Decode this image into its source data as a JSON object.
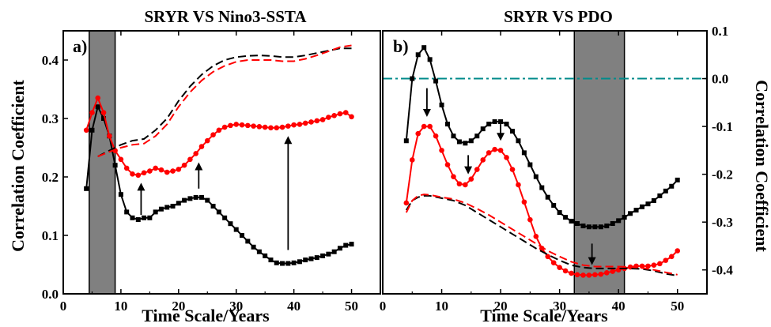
{
  "colors": {
    "black": "#000000",
    "red": "#ff0000",
    "shade": "#808080",
    "zero_line": "#008b8b"
  },
  "chart_data": [
    {
      "type": "line",
      "panel_label": "a)",
      "title": "SRYR VS Nino3-SSTA",
      "xlabel": "Time Scale/Years",
      "ylabel": "Correlation Coefficient",
      "xlim": [
        0,
        55
      ],
      "ylim": [
        0,
        0.45
      ],
      "x_ticks": [
        "0",
        "10",
        "20",
        "30",
        "40",
        "50"
      ],
      "y_ticks": [
        "0.0",
        "0.1",
        "0.2",
        "0.3",
        "0.4"
      ],
      "y_axis_side": "left",
      "shaded_band": [
        4.5,
        9
      ],
      "series": [
        {
          "color": "black",
          "style": "line-square",
          "x": [
            4,
            5,
            6,
            7,
            8,
            9,
            10,
            11,
            12,
            13,
            14,
            15,
            16,
            17,
            18,
            19,
            20,
            21,
            22,
            23,
            24,
            25,
            26,
            27,
            28,
            29,
            30,
            31,
            32,
            33,
            34,
            35,
            36,
            37,
            38,
            39,
            40,
            41,
            42,
            43,
            44,
            45,
            46,
            47,
            48,
            49,
            50
          ],
          "y": [
            0.18,
            0.28,
            0.32,
            0.3,
            0.27,
            0.22,
            0.17,
            0.14,
            0.13,
            0.127,
            0.13,
            0.13,
            0.14,
            0.145,
            0.148,
            0.15,
            0.155,
            0.16,
            0.163,
            0.165,
            0.165,
            0.16,
            0.15,
            0.14,
            0.13,
            0.12,
            0.11,
            0.1,
            0.09,
            0.08,
            0.072,
            0.065,
            0.058,
            0.053,
            0.052,
            0.052,
            0.053,
            0.055,
            0.058,
            0.06,
            0.062,
            0.065,
            0.068,
            0.072,
            0.078,
            0.083,
            0.085
          ]
        },
        {
          "color": "red",
          "style": "line-circle",
          "x": [
            4,
            5,
            6,
            7,
            8,
            9,
            10,
            11,
            12,
            13,
            14,
            15,
            16,
            17,
            18,
            19,
            20,
            21,
            22,
            23,
            24,
            25,
            26,
            27,
            28,
            29,
            30,
            31,
            32,
            33,
            34,
            35,
            36,
            37,
            38,
            39,
            40,
            41,
            42,
            43,
            44,
            45,
            46,
            47,
            48,
            49,
            50
          ],
          "y": [
            0.28,
            0.31,
            0.335,
            0.31,
            0.27,
            0.245,
            0.23,
            0.215,
            0.205,
            0.203,
            0.207,
            0.21,
            0.215,
            0.212,
            0.208,
            0.21,
            0.213,
            0.22,
            0.23,
            0.24,
            0.252,
            0.262,
            0.272,
            0.28,
            0.285,
            0.288,
            0.29,
            0.289,
            0.288,
            0.287,
            0.286,
            0.285,
            0.284,
            0.284,
            0.285,
            0.287,
            0.289,
            0.29,
            0.292,
            0.294,
            0.296,
            0.298,
            0.302,
            0.305,
            0.308,
            0.31,
            0.303
          ]
        },
        {
          "color": "black",
          "style": "dashed",
          "x": [
            6,
            8,
            10,
            12,
            14,
            16,
            18,
            20,
            22,
            24,
            26,
            28,
            30,
            32,
            34,
            36,
            38,
            40,
            42,
            44,
            46,
            48,
            50
          ],
          "y": [
            0.235,
            0.245,
            0.255,
            0.262,
            0.265,
            0.28,
            0.3,
            0.33,
            0.355,
            0.375,
            0.39,
            0.4,
            0.405,
            0.407,
            0.408,
            0.407,
            0.405,
            0.405,
            0.408,
            0.412,
            0.416,
            0.42,
            0.42
          ]
        },
        {
          "color": "red",
          "style": "dashed",
          "x": [
            6,
            8,
            10,
            12,
            14,
            16,
            18,
            20,
            22,
            24,
            26,
            28,
            30,
            32,
            34,
            36,
            38,
            40,
            42,
            44,
            46,
            48,
            50
          ],
          "y": [
            0.235,
            0.243,
            0.25,
            0.255,
            0.257,
            0.27,
            0.29,
            0.32,
            0.345,
            0.365,
            0.38,
            0.39,
            0.397,
            0.4,
            0.4,
            0.4,
            0.398,
            0.398,
            0.402,
            0.408,
            0.415,
            0.422,
            0.425
          ]
        }
      ],
      "arrows": [
        {
          "x": 13.5,
          "y_from": 0.135,
          "y_to": 0.19
        },
        {
          "x": 23.5,
          "y_from": 0.18,
          "y_to": 0.225
        },
        {
          "x": 39,
          "y_from": 0.075,
          "y_to": 0.27
        }
      ]
    },
    {
      "type": "line",
      "panel_label": "b)",
      "title": "SRYR VS PDO",
      "xlabel": "Time Scale/Years",
      "ylabel": "Correlation Coefficient",
      "xlim": [
        0,
        55
      ],
      "ylim": [
        -0.45,
        0.1
      ],
      "x_ticks": [
        "0",
        "10",
        "20",
        "30",
        "40",
        "50"
      ],
      "y_ticks": [
        "0.1",
        "0.0",
        "-0.1",
        "-0.2",
        "-0.3",
        "-0.4"
      ],
      "y_axis_side": "right",
      "shaded_band": [
        32.5,
        41
      ],
      "zero_line": 0,
      "series": [
        {
          "color": "black",
          "style": "line-square",
          "x": [
            4,
            5,
            6,
            7,
            8,
            9,
            10,
            11,
            12,
            13,
            14,
            15,
            16,
            17,
            18,
            19,
            20,
            21,
            22,
            23,
            24,
            25,
            26,
            27,
            28,
            29,
            30,
            31,
            32,
            33,
            34,
            35,
            36,
            37,
            38,
            39,
            40,
            41,
            42,
            43,
            44,
            45,
            46,
            47,
            48,
            49,
            50
          ],
          "y": [
            -0.13,
            0.0,
            0.05,
            0.065,
            0.04,
            -0.005,
            -0.055,
            -0.095,
            -0.12,
            -0.132,
            -0.135,
            -0.13,
            -0.12,
            -0.105,
            -0.095,
            -0.09,
            -0.09,
            -0.095,
            -0.11,
            -0.13,
            -0.155,
            -0.18,
            -0.205,
            -0.228,
            -0.248,
            -0.265,
            -0.28,
            -0.29,
            -0.298,
            -0.303,
            -0.308,
            -0.31,
            -0.31,
            -0.31,
            -0.308,
            -0.303,
            -0.297,
            -0.29,
            -0.282,
            -0.275,
            -0.268,
            -0.262,
            -0.255,
            -0.245,
            -0.235,
            -0.225,
            -0.212
          ]
        },
        {
          "color": "red",
          "style": "line-circle",
          "x": [
            4,
            5,
            6,
            7,
            8,
            9,
            10,
            11,
            12,
            13,
            14,
            15,
            16,
            17,
            18,
            19,
            20,
            21,
            22,
            23,
            24,
            25,
            26,
            27,
            28,
            29,
            30,
            31,
            32,
            33,
            34,
            35,
            36,
            37,
            38,
            39,
            40,
            41,
            42,
            43,
            44,
            45,
            46,
            47,
            48,
            49,
            50
          ],
          "y": [
            -0.26,
            -0.17,
            -0.115,
            -0.1,
            -0.1,
            -0.12,
            -0.15,
            -0.18,
            -0.205,
            -0.22,
            -0.222,
            -0.21,
            -0.19,
            -0.17,
            -0.155,
            -0.148,
            -0.15,
            -0.165,
            -0.19,
            -0.222,
            -0.258,
            -0.295,
            -0.33,
            -0.355,
            -0.372,
            -0.385,
            -0.395,
            -0.402,
            -0.407,
            -0.41,
            -0.411,
            -0.411,
            -0.41,
            -0.409,
            -0.406,
            -0.403,
            -0.4,
            -0.397,
            -0.394,
            -0.392,
            -0.392,
            -0.392,
            -0.39,
            -0.387,
            -0.38,
            -0.372,
            -0.36
          ]
        },
        {
          "color": "black",
          "style": "dashed",
          "x": [
            4,
            5,
            6,
            7,
            8,
            10,
            12,
            14,
            16,
            18,
            20,
            22,
            24,
            26,
            28,
            30,
            32,
            34,
            36,
            38,
            40,
            42,
            44,
            46,
            48,
            50
          ],
          "y": [
            -0.275,
            -0.255,
            -0.248,
            -0.245,
            -0.245,
            -0.25,
            -0.255,
            -0.265,
            -0.28,
            -0.295,
            -0.31,
            -0.325,
            -0.34,
            -0.355,
            -0.368,
            -0.38,
            -0.39,
            -0.395,
            -0.397,
            -0.397,
            -0.397,
            -0.397,
            -0.398,
            -0.402,
            -0.408,
            -0.412
          ]
        },
        {
          "color": "red",
          "style": "dashed",
          "x": [
            4,
            5,
            6,
            7,
            8,
            10,
            12,
            14,
            16,
            18,
            20,
            22,
            24,
            26,
            28,
            30,
            32,
            34,
            36,
            38,
            40,
            42,
            44,
            46,
            48,
            50
          ],
          "y": [
            -0.28,
            -0.255,
            -0.245,
            -0.242,
            -0.243,
            -0.248,
            -0.252,
            -0.26,
            -0.272,
            -0.285,
            -0.3,
            -0.315,
            -0.33,
            -0.345,
            -0.36,
            -0.372,
            -0.383,
            -0.39,
            -0.393,
            -0.393,
            -0.393,
            -0.394,
            -0.396,
            -0.4,
            -0.405,
            -0.41
          ]
        }
      ],
      "arrows": [
        {
          "x": 7.5,
          "y_from": -0.02,
          "y_to": -0.08
        },
        {
          "x": 14.5,
          "y_from": -0.16,
          "y_to": -0.2
        },
        {
          "x": 20,
          "y_from": -0.095,
          "y_to": -0.13
        },
        {
          "x": 35.5,
          "y_from": -0.345,
          "y_to": -0.39
        }
      ]
    }
  ]
}
